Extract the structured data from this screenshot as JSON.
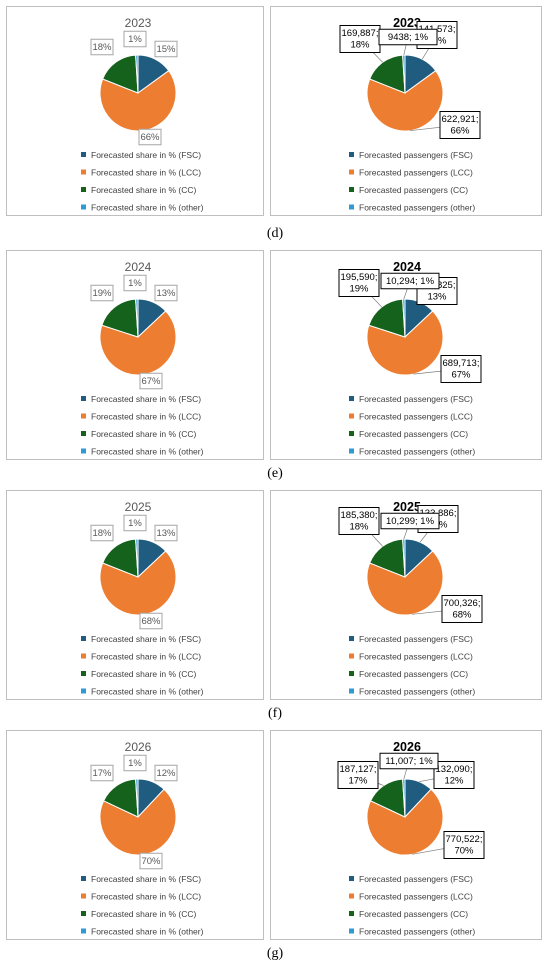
{
  "colors": {
    "FSC": "#1f5c80",
    "LCC": "#ed7d31",
    "CC": "#15621c",
    "other": "#2e9bd6",
    "label_border": "#a6a6a6"
  },
  "legend_left": [
    "Forecasted share in % (FSC)",
    "Forecasted share in % (LCC)",
    "Forecasted share in % (CC)",
    "Forecasted share in % (other)"
  ],
  "legend_right": [
    "Forecasted passengers (FSC)",
    "Forecasted passengers (LCC)",
    "Forecasted passengers (CC)",
    "Forecasted passengers (other)"
  ],
  "captions": [
    "(d)",
    "(e)",
    "(f)",
    "(g)"
  ],
  "chart_data": [
    {
      "type": "pie",
      "title": "2023",
      "caption": "(d)",
      "categories": [
        "FSC",
        "LCC",
        "CC",
        "other"
      ],
      "share_labels": [
        "15%",
        "66%",
        "18%",
        "1%"
      ],
      "passenger_values": [
        141573,
        622921,
        169887,
        9438
      ],
      "passenger_labels": [
        [
          "141,573;",
          "15%"
        ],
        [
          "622,921;",
          "66%"
        ],
        [
          "169,887;",
          "18%"
        ],
        [
          "9438; 1%"
        ]
      ]
    },
    {
      "type": "pie",
      "title": "2024",
      "caption": "(e)",
      "categories": [
        "FSC",
        "LCC",
        "CC",
        "other"
      ],
      "share_labels": [
        "13%",
        "67%",
        "19%",
        "1%"
      ],
      "passenger_values": [
        133825,
        689713,
        195590,
        10294
      ],
      "passenger_labels": [
        [
          "133,825;",
          "13%"
        ],
        [
          "689,713;",
          "67%"
        ],
        [
          "195,590;",
          "19%"
        ],
        [
          "10,294; 1%"
        ]
      ]
    },
    {
      "type": "pie",
      "title": "2025",
      "caption": "(f)",
      "categories": [
        "FSC",
        "LCC",
        "CC",
        "other"
      ],
      "share_labels": [
        "13%",
        "68%",
        "18%",
        "1%"
      ],
      "passenger_values": [
        133886,
        700326,
        185380,
        10299
      ],
      "passenger_labels": [
        [
          "133,886;",
          "13%"
        ],
        [
          "700,326;",
          "68%"
        ],
        [
          "185,380;",
          "18%"
        ],
        [
          "10,299; 1%"
        ]
      ]
    },
    {
      "type": "pie",
      "title": "2026",
      "caption": "(g)",
      "categories": [
        "FSC",
        "LCC",
        "CC",
        "other"
      ],
      "share_labels": [
        "12%",
        "70%",
        "17%",
        "1%"
      ],
      "passenger_values": [
        132090,
        770522,
        187127,
        11007
      ],
      "passenger_labels": [
        [
          "132,090;",
          "12%"
        ],
        [
          "770,522;",
          "70%"
        ],
        [
          "187,127;",
          "17%"
        ],
        [
          "11,007; 1%"
        ]
      ]
    }
  ]
}
